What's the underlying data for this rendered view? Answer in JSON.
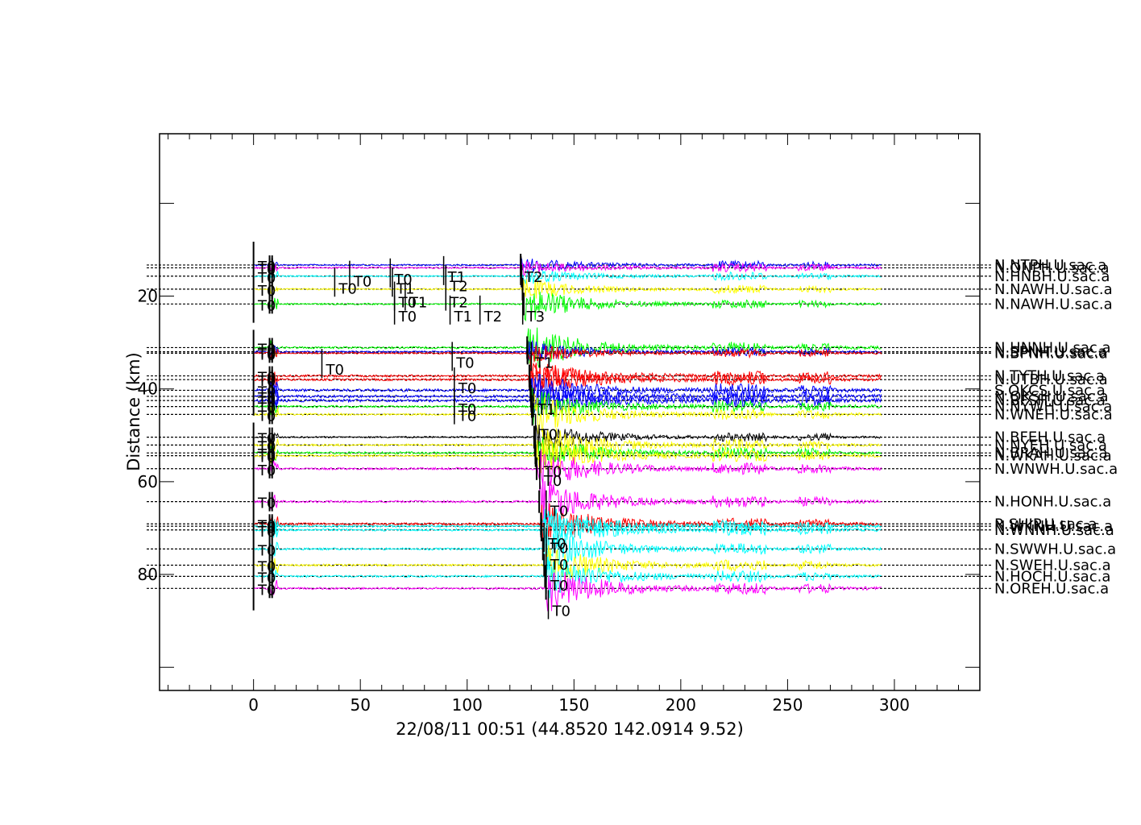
{
  "chart_data": {
    "type": "line",
    "title": "22/08/11 00:51 (44.8520 142.0914 9.52)",
    "xlabel": "22/08/11 00:51 (44.8520 142.0914 9.52)",
    "ylabel": "Distance (km)",
    "xlim": [
      -44,
      340
    ],
    "ylim": [
      105,
      -15
    ],
    "x_ticks": [
      0,
      50,
      100,
      150,
      200,
      250,
      300
    ],
    "y_ticks": [
      20,
      40,
      60,
      80
    ],
    "grid": false,
    "series": [
      {
        "name": "N.NTPH.U.sac.a",
        "distance": 13.3,
        "color": "#0000ff",
        "amp": 3,
        "burst": 9
      },
      {
        "name": "N.ONPH.U.sac.a",
        "distance": 13.9,
        "color": "#ff00ff",
        "amp": 3,
        "burst": 9
      },
      {
        "name": "N.HNBH.U.sac.a",
        "distance": 15.7,
        "color": "#00ffff",
        "amp": 3,
        "burst": 10
      },
      {
        "name": "N.NAWH.U.sac.a",
        "distance": 18.5,
        "color": "#ffff00",
        "amp": 3,
        "burst": 14
      },
      {
        "name": "N.NAWH.U.sac.a",
        "distance": 21.7,
        "color": "#00ff00",
        "amp": 3,
        "burst": 24
      },
      {
        "name": "N.HNNH.U.sac.a",
        "distance": 31.1,
        "color": "#00ff00",
        "amp": 4,
        "burst": 30
      },
      {
        "name": "N.SPNH.U.sac.a",
        "distance": 32.0,
        "color": "#0000ff",
        "amp": 3,
        "burst": 14
      },
      {
        "name": "N.BPNH.U.sac.a",
        "distance": 32.3,
        "color": "#ff0000",
        "amp": 3,
        "burst": 12
      },
      {
        "name": "N.TYTH.U.sac.a",
        "distance": 37.2,
        "color": "#ff0000",
        "amp": 4,
        "burst": 20
      },
      {
        "name": "N.UTBH.U.sac.a",
        "distance": 38.0,
        "color": "#ff0000",
        "amp": 4,
        "burst": 22
      },
      {
        "name": "S.OKCS.U.sac.a",
        "distance": 40.3,
        "color": "#0000ff",
        "amp": 5,
        "burst": 22
      },
      {
        "name": "N.OKSH.U.sac.a",
        "distance": 41.6,
        "color": "#0000ff",
        "amp": 5,
        "burst": 22
      },
      {
        "name": "N.BFSH.U.sac.a",
        "distance": 42.5,
        "color": "#0000ff",
        "amp": 5,
        "burst": 22
      },
      {
        "name": "N.NYWH.U.sac.a",
        "distance": 43.8,
        "color": "#00ff00",
        "amp": 4,
        "burst": 22
      },
      {
        "name": "N.WNEH.U.sac.a",
        "distance": 45.5,
        "color": "#ffff00",
        "amp": 4,
        "burst": 26
      },
      {
        "name": "N.BFEH.U.sac.a",
        "distance": 50.4,
        "color": "#000000",
        "amp": 3,
        "burst": 20
      },
      {
        "name": "N.NYEH.U.sac.a",
        "distance": 52.1,
        "color": "#ffff00",
        "amp": 4,
        "burst": 30
      },
      {
        "name": "N.BRAH.U.sac.a",
        "distance": 53.8,
        "color": "#00ff00",
        "amp": 4,
        "burst": 22
      },
      {
        "name": "N.WKAH.U.sac.a",
        "distance": 54.4,
        "color": "#ffff00",
        "amp": 4,
        "burst": 26
      },
      {
        "name": "N.WNWH.U.sac.a",
        "distance": 57.2,
        "color": "#ff00ff",
        "amp": 4,
        "burst": 28
      },
      {
        "name": "N.HONH.U.sac.a",
        "distance": 64.3,
        "color": "#ff00ff",
        "amp": 4,
        "burst": 30
      },
      {
        "name": "R.SHIP.U.sac.a",
        "distance": 69.1,
        "color": "#ff0000",
        "amp": 4,
        "burst": 30
      },
      {
        "name": "N.WKNH.U.sac.a",
        "distance": 69.6,
        "color": "#00ffff",
        "amp": 4,
        "burst": 28
      },
      {
        "name": "N.WNNH.U.sac.a",
        "distance": 70.4,
        "color": "#00ffff",
        "amp": 4,
        "burst": 28
      },
      {
        "name": "N.SWWH.U.sac.a",
        "distance": 74.5,
        "color": "#00ffff",
        "amp": 4,
        "burst": 28
      },
      {
        "name": "N.SWEH.U.sac.a",
        "distance": 78.0,
        "color": "#ffff00",
        "amp": 4,
        "burst": 28
      },
      {
        "name": "N.HOCH.U.sac.a",
        "distance": 80.4,
        "color": "#00ffff",
        "amp": 4,
        "burst": 28
      },
      {
        "name": "N.OREH.U.sac.a",
        "distance": 83.0,
        "color": "#ff00ff",
        "amp": 4,
        "burst": 30
      }
    ],
    "labels_text": [
      "N.NTPH.U.sac.a",
      "N.ONPH.U.sac.a",
      "N.HNBH.U.sac.a",
      "N.NAWH.U.sac.a",
      "N.HNNH.U.sac.a",
      "N.SPNH.U.sac.a",
      "N.BPNH.U.sac.a",
      "N.TYTH.U.sac.a",
      "N.UTBH.U.sac.a",
      "S.OKCS.U.sac.a",
      "N.OKSH.U.sac.a",
      "N.BFSH.U.sac.a",
      "N.NYWH.U.sac.a",
      "N.WNEH.U.sac.a",
      "N.BFEH.U.sac.a",
      "N.NYEH.U.sac.a",
      "N.BRAH.U.sac.a",
      "N.WKAH.U.sac.a",
      "N.WNWH.U.sac.a",
      "N.HONH.U.sac.a",
      "R.SHIP.U.sac.a",
      "N.WKNH.U.sac.a",
      "N.WNNH.U.sac.a",
      "N.SWWH.U.sac.a",
      "N.SWEH.U.sac.a",
      "N.HOCH.U.sac.a",
      "N.OREH.U.sac.a"
    ],
    "picks": [
      {
        "label": "T0",
        "x": 38,
        "distance": 17.0
      },
      {
        "label": "T0",
        "x": 45,
        "distance": 15.5
      },
      {
        "label": "T0",
        "x": 64,
        "distance": 15.0
      },
      {
        "label": "T1",
        "x": 65,
        "distance": 17.0
      },
      {
        "label": "T0",
        "x": 66,
        "distance": 20.0
      },
      {
        "label": "T1",
        "x": 71,
        "distance": 20.0
      },
      {
        "label": "T0",
        "x": 66,
        "distance": 23.0
      },
      {
        "label": "T1",
        "x": 89,
        "distance": 14.5
      },
      {
        "label": "T2",
        "x": 90,
        "distance": 16.5
      },
      {
        "label": "T2",
        "x": 90,
        "distance": 20.0
      },
      {
        "label": "T1",
        "x": 92,
        "distance": 23.0
      },
      {
        "label": "T2",
        "x": 106,
        "distance": 23.0
      },
      {
        "label": "T2",
        "x": 125,
        "distance": 14.5
      },
      {
        "label": "T3",
        "x": 126,
        "distance": 23.0
      },
      {
        "label": "T0",
        "x": 32,
        "distance": 34.5
      },
      {
        "label": "T0",
        "x": 93,
        "distance": 33.0
      },
      {
        "label": "T1",
        "x": 130,
        "distance": 33.0
      },
      {
        "label": "T0",
        "x": 94,
        "distance": 38.5
      },
      {
        "label": "T0",
        "x": 94,
        "distance": 43.0
      },
      {
        "label": "T0",
        "x": 94,
        "distance": 44.5
      },
      {
        "label": "T1",
        "x": 131,
        "distance": 43.0
      },
      {
        "label": "T0",
        "x": 132,
        "distance": 48.5
      },
      {
        "label": "T0",
        "x": 134,
        "distance": 56.5
      },
      {
        "label": "T0",
        "x": 134,
        "distance": 58.5
      },
      {
        "label": "T0",
        "x": 137,
        "distance": 65.0
      },
      {
        "label": "T0",
        "x": 136,
        "distance": 72.0
      },
      {
        "label": "T0",
        "x": 137,
        "distance": 73.0
      },
      {
        "label": "T0",
        "x": 137,
        "distance": 76.5
      },
      {
        "label": "T0",
        "x": 137,
        "distance": 81.0
      },
      {
        "label": "T0",
        "x": 138,
        "distance": 86.5
      }
    ]
  }
}
